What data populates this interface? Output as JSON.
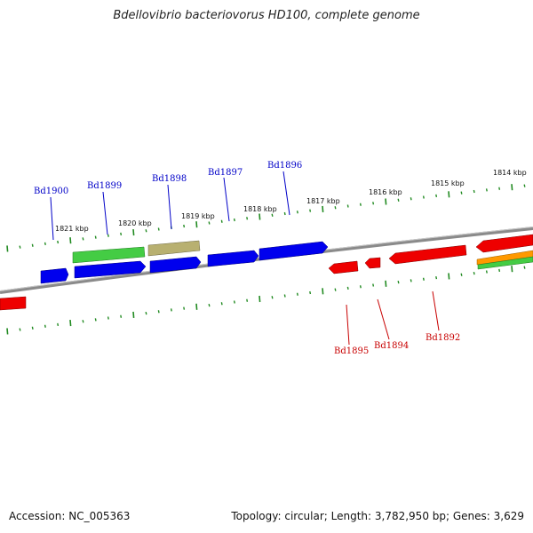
{
  "title": "Bdellovibrio bacteriovorus HD100, complete genome",
  "footer": {
    "accession": "Accession: NC_005363",
    "summary": "Topology: circular; Length: 3,782,950 bp; Genes: 3,629"
  },
  "colors": {
    "forward_label": "#0000c8",
    "reverse_label": "#c80000",
    "tick": "#228b22",
    "backbone": "#888888"
  },
  "kbp_ticks": [
    "1821 kbp",
    "1820 kbp",
    "1819 kbp",
    "1818 kbp",
    "1817 kbp",
    "1816 kbp",
    "1815 kbp",
    "1814 kbp"
  ],
  "forward_labels": [
    "Bd1900",
    "Bd1899",
    "Bd1898",
    "Bd1897",
    "Bd1896"
  ],
  "reverse_labels": [
    "Bd1895",
    "Bd1894",
    "Bd1892"
  ]
}
